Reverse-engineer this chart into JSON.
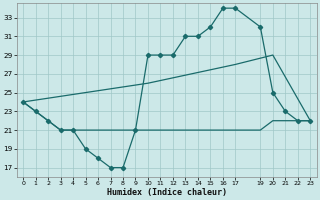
{
  "xlabel": "Humidex (Indice chaleur)",
  "bg_color": "#cce8e8",
  "grid_color": "#a0c8c8",
  "line_color": "#1a6b6b",
  "xlim": [
    -0.5,
    23.5
  ],
  "ylim": [
    16,
    34.5
  ],
  "xtick_vals": [
    0,
    1,
    2,
    3,
    4,
    5,
    6,
    7,
    8,
    9,
    10,
    11,
    12,
    13,
    14,
    15,
    16,
    17,
    19,
    20,
    21,
    22,
    23
  ],
  "ytick_vals": [
    17,
    19,
    21,
    23,
    25,
    27,
    29,
    31,
    33
  ],
  "line1_x": [
    0,
    1,
    2,
    3,
    4,
    5,
    6,
    7,
    8,
    9,
    10,
    11,
    12,
    13,
    14,
    15,
    16,
    17,
    19,
    20,
    21,
    22,
    23
  ],
  "line1_y": [
    24,
    23,
    22,
    21,
    21,
    19,
    18,
    17,
    17,
    21,
    29,
    29,
    29,
    31,
    31,
    32,
    34,
    34,
    32,
    25,
    23,
    22,
    22
  ],
  "line2_x": [
    0,
    3,
    9,
    17,
    19,
    20,
    21,
    22,
    23
  ],
  "line2_y": [
    24,
    21,
    21,
    21,
    21,
    22,
    22,
    22,
    22
  ],
  "line3_x": [
    0,
    10,
    17,
    20,
    23
  ],
  "line3_y": [
    24,
    26,
    28,
    29,
    22
  ]
}
